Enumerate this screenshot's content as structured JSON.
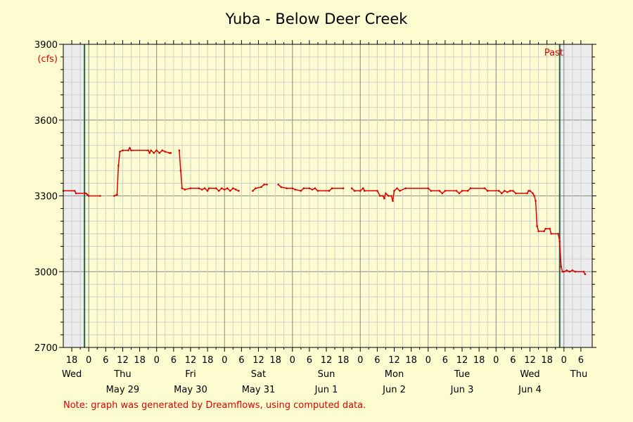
{
  "chart_data": {
    "type": "line",
    "title": "Yuba - Below Deer Creek",
    "yunit": "(cfs)",
    "ylim": [
      2700,
      3900
    ],
    "yticks": [
      2700,
      3000,
      3300,
      3600,
      3900
    ],
    "xlim_hours": [
      -9,
      165
    ],
    "hour_ticks": [
      {
        "h": -6,
        "label": "18"
      },
      {
        "h": 0,
        "label": "0"
      },
      {
        "h": 6,
        "label": "6"
      },
      {
        "h": 12,
        "label": "12"
      },
      {
        "h": 18,
        "label": "18"
      },
      {
        "h": 24,
        "label": "0"
      },
      {
        "h": 30,
        "label": "6"
      },
      {
        "h": 36,
        "label": "12"
      },
      {
        "h": 42,
        "label": "18"
      },
      {
        "h": 48,
        "label": "0"
      },
      {
        "h": 54,
        "label": "6"
      },
      {
        "h": 60,
        "label": "12"
      },
      {
        "h": 66,
        "label": "18"
      },
      {
        "h": 72,
        "label": "0"
      },
      {
        "h": 78,
        "label": "6"
      },
      {
        "h": 84,
        "label": "12"
      },
      {
        "h": 90,
        "label": "18"
      },
      {
        "h": 96,
        "label": "0"
      },
      {
        "h": 102,
        "label": "6"
      },
      {
        "h": 108,
        "label": "12"
      },
      {
        "h": 114,
        "label": "18"
      },
      {
        "h": 120,
        "label": "0"
      },
      {
        "h": 126,
        "label": "6"
      },
      {
        "h": 132,
        "label": "12"
      },
      {
        "h": 138,
        "label": "18"
      },
      {
        "h": 144,
        "label": "0"
      },
      {
        "h": 150,
        "label": "6"
      },
      {
        "h": 156,
        "label": "12"
      },
      {
        "h": 162,
        "label": "18"
      }
    ],
    "day_labels": [
      {
        "h": -6,
        "label": "Wed"
      },
      {
        "h": 12,
        "label": "Thu"
      },
      {
        "h": 36,
        "label": "Fri"
      },
      {
        "h": 60,
        "label": "Sat"
      },
      {
        "h": 84,
        "label": "Sun"
      },
      {
        "h": 108,
        "label": "Mon"
      },
      {
        "h": 132,
        "label": "Tue"
      },
      {
        "h": 156,
        "label": "Wed"
      },
      {
        "h": 172,
        "label": "Thu"
      }
    ],
    "date_labels": [
      {
        "h": 12,
        "label": "May 29"
      },
      {
        "h": 36,
        "label": "May 30"
      },
      {
        "h": 60,
        "label": "May 31"
      },
      {
        "h": 84,
        "label": "Jun 1"
      },
      {
        "h": 108,
        "label": "Jun 2"
      },
      {
        "h": 132,
        "label": "Jun 3"
      },
      {
        "h": 156,
        "label": "Jun 4"
      }
    ],
    "extra_hour_ticks": [
      {
        "h": 168,
        "label": "0"
      },
      {
        "h": 174,
        "label": "6"
      }
    ],
    "past_boundaries_hours": [
      -1.5,
      166.5
    ],
    "past_label": "Past",
    "note": "Note: graph was generated by Dreamflows, using computed data.",
    "series": [
      {
        "segments": [
          [
            [
              -9,
              3320
            ],
            [
              -5,
              3320
            ],
            [
              -4.5,
              3310
            ],
            [
              -1,
              3310
            ],
            [
              -0.5,
              3305
            ],
            [
              0,
              3300
            ],
            [
              4,
              3300
            ]
          ],
          [
            [
              9,
              3300
            ],
            [
              10,
              3305
            ],
            [
              10.5,
              3420
            ],
            [
              11,
              3475
            ],
            [
              12,
              3480
            ],
            [
              14,
              3480
            ],
            [
              14.5,
              3490
            ],
            [
              15,
              3480
            ],
            [
              21,
              3480
            ],
            [
              21.5,
              3470
            ],
            [
              22,
              3480
            ],
            [
              23,
              3470
            ],
            [
              24,
              3480
            ],
            [
              25,
              3470
            ],
            [
              26,
              3480
            ],
            [
              27,
              3475
            ],
            [
              28.5,
              3470
            ],
            [
              29,
              3470
            ]
          ],
          [
            [
              32,
              3480
            ],
            [
              32.5,
              3400
            ],
            [
              33,
              3330
            ],
            [
              34,
              3325
            ],
            [
              36,
              3330
            ],
            [
              39,
              3330
            ],
            [
              40,
              3325
            ],
            [
              41,
              3330
            ],
            [
              42,
              3320
            ],
            [
              42.5,
              3330
            ],
            [
              45,
              3330
            ],
            [
              46,
              3320
            ],
            [
              47,
              3330
            ],
            [
              48,
              3325
            ],
            [
              49,
              3330
            ],
            [
              50,
              3320
            ],
            [
              51,
              3330
            ],
            [
              52,
              3325
            ],
            [
              53,
              3320
            ]
          ],
          [
            [
              58,
              3320
            ],
            [
              59,
              3330
            ],
            [
              61,
              3335
            ],
            [
              62,
              3345
            ],
            [
              63,
              3345
            ]
          ],
          [
            [
              67,
              3345
            ],
            [
              68,
              3335
            ],
            [
              70,
              3330
            ],
            [
              72,
              3330
            ],
            [
              73,
              3325
            ],
            [
              75,
              3320
            ],
            [
              76,
              3330
            ],
            [
              78,
              3330
            ],
            [
              79,
              3325
            ],
            [
              80,
              3330
            ],
            [
              81,
              3320
            ],
            [
              85,
              3320
            ],
            [
              86,
              3330
            ],
            [
              90,
              3330
            ]
          ],
          [
            [
              93,
              3330
            ],
            [
              94,
              3320
            ],
            [
              96,
              3320
            ],
            [
              97,
              3330
            ],
            [
              97.5,
              3320
            ],
            [
              102,
              3320
            ],
            [
              103,
              3300
            ],
            [
              104,
              3300
            ],
            [
              104.5,
              3290
            ],
            [
              105,
              3310
            ],
            [
              106,
              3300
            ],
            [
              107,
              3300
            ],
            [
              107.5,
              3280
            ],
            [
              108,
              3320
            ],
            [
              109,
              3330
            ],
            [
              110,
              3320
            ],
            [
              112,
              3330
            ],
            [
              120,
              3330
            ],
            [
              121,
              3320
            ],
            [
              124,
              3320
            ],
            [
              125,
              3310
            ],
            [
              126,
              3320
            ],
            [
              130,
              3320
            ],
            [
              131,
              3310
            ],
            [
              132,
              3320
            ],
            [
              134,
              3320
            ],
            [
              135,
              3330
            ],
            [
              140,
              3330
            ],
            [
              141,
              3320
            ],
            [
              145,
              3320
            ],
            [
              146,
              3310
            ],
            [
              147,
              3320
            ],
            [
              148,
              3315
            ],
            [
              149,
              3320
            ],
            [
              150,
              3320
            ],
            [
              151,
              3310
            ],
            [
              155,
              3310
            ],
            [
              155.5,
              3320
            ],
            [
              156,
              3320
            ],
            [
              157,
              3310
            ],
            [
              157.5,
              3300
            ],
            [
              158,
              3280
            ],
            [
              158.5,
              3180
            ],
            [
              159,
              3160
            ],
            [
              161,
              3160
            ],
            [
              161.5,
              3170
            ],
            [
              163,
              3170
            ],
            [
              163.5,
              3150
            ],
            [
              166,
              3150
            ],
            [
              166.5,
              3120
            ],
            [
              167,
              3020
            ],
            [
              167.5,
              3000
            ],
            [
              168,
              3000
            ],
            [
              169,
              3005
            ],
            [
              170,
              3000
            ],
            [
              171,
              3005
            ],
            [
              172,
              3000
            ],
            [
              175,
              3000
            ],
            [
              175.5,
              2990
            ]
          ]
        ]
      }
    ]
  }
}
